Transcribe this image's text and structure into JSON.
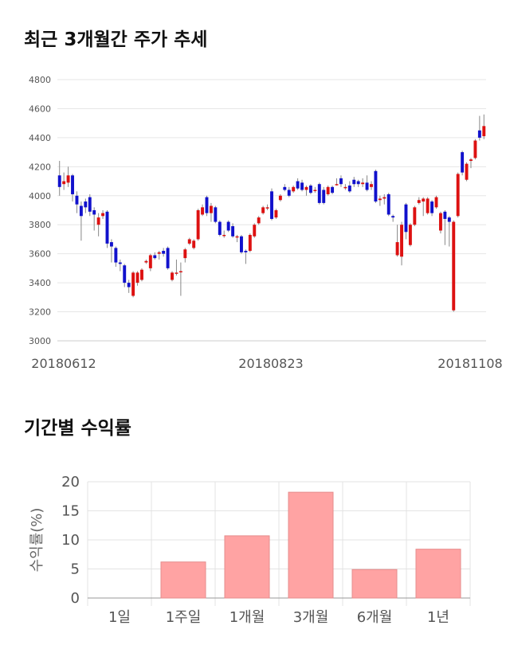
{
  "sections": {
    "price_title": "최근 3개월간 주가 추세",
    "returns_title": "기간별 수익률"
  },
  "chart_data": [
    {
      "type": "candlestick",
      "title": "최근 3개월간 주가 추세",
      "ylim": [
        3000,
        4800
      ],
      "yticks": [
        3000,
        3200,
        3400,
        3600,
        3800,
        4000,
        4200,
        4400,
        4600,
        4800
      ],
      "xtick_labels": [
        "20180612",
        "20180823",
        "20181108"
      ],
      "grid": true,
      "colors": {
        "up": "#dd1111",
        "down": "#1111cc",
        "wick": "#888888"
      },
      "candles": [
        {
          "o": 4140,
          "c": 4060,
          "h": 4240,
          "l": 4000
        },
        {
          "o": 4080,
          "c": 4100,
          "h": 4160,
          "l": 4040
        },
        {
          "o": 4090,
          "c": 4140,
          "h": 4200,
          "l": 4060
        },
        {
          "o": 4140,
          "c": 4010,
          "h": 4150,
          "l": 3960
        },
        {
          "o": 4000,
          "c": 3940,
          "h": 4030,
          "l": 3880
        },
        {
          "o": 3930,
          "c": 3860,
          "h": 3960,
          "l": 3690
        },
        {
          "o": 3960,
          "c": 3920,
          "h": 3980,
          "l": 3880
        },
        {
          "o": 3990,
          "c": 3890,
          "h": 4010,
          "l": 3860
        },
        {
          "o": 3900,
          "c": 3870,
          "h": 3920,
          "l": 3760
        },
        {
          "o": 3800,
          "c": 3850,
          "h": 3880,
          "l": 3720
        },
        {
          "o": 3860,
          "c": 3880,
          "h": 3900,
          "l": 3840
        },
        {
          "o": 3890,
          "c": 3670,
          "h": 3900,
          "l": 3640
        },
        {
          "o": 3680,
          "c": 3650,
          "h": 3700,
          "l": 3540
        },
        {
          "o": 3640,
          "c": 3540,
          "h": 3650,
          "l": 3510
        },
        {
          "o": 3540,
          "c": 3530,
          "h": 3560,
          "l": 3480
        },
        {
          "o": 3520,
          "c": 3400,
          "h": 3530,
          "l": 3370
        },
        {
          "o": 3400,
          "c": 3370,
          "h": 3420,
          "l": 3330
        },
        {
          "o": 3310,
          "c": 3470,
          "h": 3480,
          "l": 3300
        },
        {
          "o": 3400,
          "c": 3470,
          "h": 3480,
          "l": 3380
        },
        {
          "o": 3420,
          "c": 3490,
          "h": 3500,
          "l": 3410
        },
        {
          "o": 3540,
          "c": 3550,
          "h": 3560,
          "l": 3530
        },
        {
          "o": 3500,
          "c": 3590,
          "h": 3600,
          "l": 3480
        },
        {
          "o": 3590,
          "c": 3570,
          "h": 3610,
          "l": 3560
        },
        {
          "o": 3600,
          "c": 3610,
          "h": 3620,
          "l": 3560
        },
        {
          "o": 3620,
          "c": 3600,
          "h": 3640,
          "l": 3580
        },
        {
          "o": 3640,
          "c": 3500,
          "h": 3650,
          "l": 3490
        },
        {
          "o": 3420,
          "c": 3470,
          "h": 3480,
          "l": 3410
        },
        {
          "o": 3470,
          "c": 3470,
          "h": 3560,
          "l": 3450
        },
        {
          "o": 3480,
          "c": 3480,
          "h": 3540,
          "l": 3310
        },
        {
          "o": 3570,
          "c": 3630,
          "h": 3640,
          "l": 3540
        },
        {
          "o": 3670,
          "c": 3700,
          "h": 3710,
          "l": 3660
        },
        {
          "o": 3640,
          "c": 3690,
          "h": 3700,
          "l": 3630
        },
        {
          "o": 3700,
          "c": 3900,
          "h": 3910,
          "l": 3690
        },
        {
          "o": 3870,
          "c": 3920,
          "h": 3940,
          "l": 3860
        },
        {
          "o": 3990,
          "c": 3880,
          "h": 4000,
          "l": 3860
        },
        {
          "o": 3880,
          "c": 3930,
          "h": 3950,
          "l": 3820
        },
        {
          "o": 3920,
          "c": 3820,
          "h": 3930,
          "l": 3810
        },
        {
          "o": 3820,
          "c": 3730,
          "h": 3830,
          "l": 3720
        },
        {
          "o": 3730,
          "c": 3730,
          "h": 3760,
          "l": 3710
        },
        {
          "o": 3820,
          "c": 3760,
          "h": 3830,
          "l": 3750
        },
        {
          "o": 3790,
          "c": 3720,
          "h": 3810,
          "l": 3710
        },
        {
          "o": 3720,
          "c": 3720,
          "h": 3730,
          "l": 3680
        },
        {
          "o": 3720,
          "c": 3610,
          "h": 3730,
          "l": 3600
        },
        {
          "o": 3620,
          "c": 3610,
          "h": 3630,
          "l": 3530
        },
        {
          "o": 3620,
          "c": 3730,
          "h": 3740,
          "l": 3610
        },
        {
          "o": 3720,
          "c": 3800,
          "h": 3810,
          "l": 3710
        },
        {
          "o": 3810,
          "c": 3850,
          "h": 3860,
          "l": 3800
        },
        {
          "o": 3880,
          "c": 3920,
          "h": 3930,
          "l": 3870
        },
        {
          "o": 3920,
          "c": 3920,
          "h": 3940,
          "l": 3900
        },
        {
          "o": 4030,
          "c": 3840,
          "h": 4050,
          "l": 3830
        },
        {
          "o": 3850,
          "c": 3900,
          "h": 3910,
          "l": 3840
        },
        {
          "o": 3970,
          "c": 4000,
          "h": 4010,
          "l": 3960
        },
        {
          "o": 4060,
          "c": 4040,
          "h": 4080,
          "l": 4030
        },
        {
          "o": 4040,
          "c": 4000,
          "h": 4060,
          "l": 3990
        },
        {
          "o": 4030,
          "c": 4060,
          "h": 4070,
          "l": 4020
        },
        {
          "o": 4100,
          "c": 4050,
          "h": 4120,
          "l": 4040
        },
        {
          "o": 4090,
          "c": 4040,
          "h": 4110,
          "l": 4030
        },
        {
          "o": 4040,
          "c": 4060,
          "h": 4070,
          "l": 4000
        },
        {
          "o": 4070,
          "c": 4020,
          "h": 4080,
          "l": 4010
        },
        {
          "o": 4040,
          "c": 4040,
          "h": 4060,
          "l": 4020
        },
        {
          "o": 4080,
          "c": 3950,
          "h": 4090,
          "l": 3940
        },
        {
          "o": 4040,
          "c": 3950,
          "h": 4060,
          "l": 3940
        },
        {
          "o": 4010,
          "c": 4060,
          "h": 4070,
          "l": 4000
        },
        {
          "o": 4060,
          "c": 4020,
          "h": 4070,
          "l": 4010
        },
        {
          "o": 4080,
          "c": 4080,
          "h": 4120,
          "l": 4070
        },
        {
          "o": 4120,
          "c": 4080,
          "h": 4140,
          "l": 4060
        },
        {
          "o": 4060,
          "c": 4060,
          "h": 4080,
          "l": 4040
        },
        {
          "o": 4070,
          "c": 4030,
          "h": 4100,
          "l": 4020
        },
        {
          "o": 4110,
          "c": 4080,
          "h": 4130,
          "l": 4060
        },
        {
          "o": 4100,
          "c": 4080,
          "h": 4110,
          "l": 4060
        },
        {
          "o": 4080,
          "c": 4090,
          "h": 4120,
          "l": 4060
        },
        {
          "o": 4090,
          "c": 4040,
          "h": 4140,
          "l": 4030
        },
        {
          "o": 4060,
          "c": 4080,
          "h": 4100,
          "l": 4040
        },
        {
          "o": 4170,
          "c": 3960,
          "h": 4180,
          "l": 3950
        },
        {
          "o": 3970,
          "c": 3980,
          "h": 4000,
          "l": 3930
        },
        {
          "o": 3980,
          "c": 3990,
          "h": 4010,
          "l": 3940
        },
        {
          "o": 4010,
          "c": 3870,
          "h": 4020,
          "l": 3860
        },
        {
          "o": 3860,
          "c": 3850,
          "h": 3870,
          "l": 3820
        },
        {
          "o": 3590,
          "c": 3680,
          "h": 3800,
          "l": 3580
        },
        {
          "o": 3580,
          "c": 3800,
          "h": 3820,
          "l": 3520
        },
        {
          "o": 3940,
          "c": 3750,
          "h": 3950,
          "l": 3700
        },
        {
          "o": 3660,
          "c": 3800,
          "h": 3810,
          "l": 3650
        },
        {
          "o": 3800,
          "c": 3920,
          "h": 3930,
          "l": 3790
        },
        {
          "o": 3950,
          "c": 3970,
          "h": 3990,
          "l": 3940
        },
        {
          "o": 3960,
          "c": 3980,
          "h": 3990,
          "l": 3860
        },
        {
          "o": 3880,
          "c": 3980,
          "h": 3990,
          "l": 3870
        },
        {
          "o": 3960,
          "c": 3880,
          "h": 3970,
          "l": 3860
        },
        {
          "o": 3920,
          "c": 3990,
          "h": 4000,
          "l": 3910
        },
        {
          "o": 3760,
          "c": 3880,
          "h": 3890,
          "l": 3740
        },
        {
          "o": 3890,
          "c": 3840,
          "h": 3900,
          "l": 3660
        },
        {
          "o": 3850,
          "c": 3820,
          "h": 3860,
          "l": 3650
        },
        {
          "o": 3210,
          "c": 3820,
          "h": 3830,
          "l": 3200
        },
        {
          "o": 3860,
          "c": 4150,
          "h": 4160,
          "l": 3850
        },
        {
          "o": 4300,
          "c": 4160,
          "h": 4310,
          "l": 4140
        },
        {
          "o": 4110,
          "c": 4220,
          "h": 4230,
          "l": 4100
        },
        {
          "o": 4240,
          "c": 4250,
          "h": 4260,
          "l": 4190
        },
        {
          "o": 4260,
          "c": 4380,
          "h": 4390,
          "l": 4250
        },
        {
          "o": 4450,
          "c": 4400,
          "h": 4550,
          "l": 4380
        },
        {
          "o": 4410,
          "c": 4480,
          "h": 4560,
          "l": 4390
        }
      ]
    },
    {
      "type": "bar",
      "title": "기간별 수익률",
      "ylabel": "수익률(%)",
      "ylim": [
        0,
        20
      ],
      "yticks": [
        0,
        5,
        10,
        15,
        20
      ],
      "categories": [
        "1일",
        "1주일",
        "1개월",
        "3개월",
        "6개월",
        "1년"
      ],
      "values": [
        0,
        6.2,
        10.7,
        18.2,
        4.9,
        8.4
      ],
      "colors": {
        "bar": "#ffa3a3",
        "bar_edge": "#e58c8c"
      },
      "grid": true
    }
  ]
}
